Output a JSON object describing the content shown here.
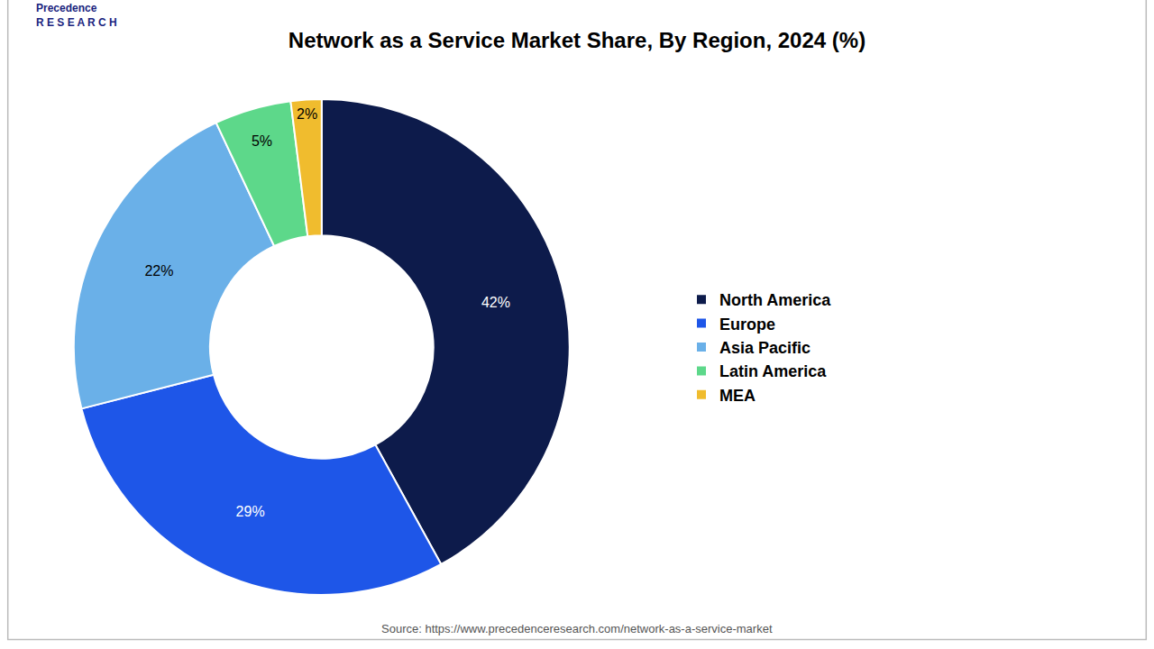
{
  "chart_data": {
    "type": "donut",
    "title": "Network as a Service Market Share, By Region, 2024 (%)",
    "categories": [
      "North America",
      "Europe",
      "Asia Pacific",
      "Latin America",
      "MEA"
    ],
    "values": [
      42,
      29,
      22,
      5,
      2
    ],
    "value_labels": [
      "42%",
      "29%",
      "22%",
      "5%",
      "2%"
    ],
    "colors": [
      "#0d1b4b",
      "#1e56e8",
      "#6ab0e8",
      "#5dd88a",
      "#f0bc2e"
    ],
    "data_labels": true,
    "legend": "right",
    "annotations": [
      "Precedence\nR E S E A R C H",
      "Source: https://www.precedenceresearch.com/network-as-a-service-market"
    ]
  }
}
